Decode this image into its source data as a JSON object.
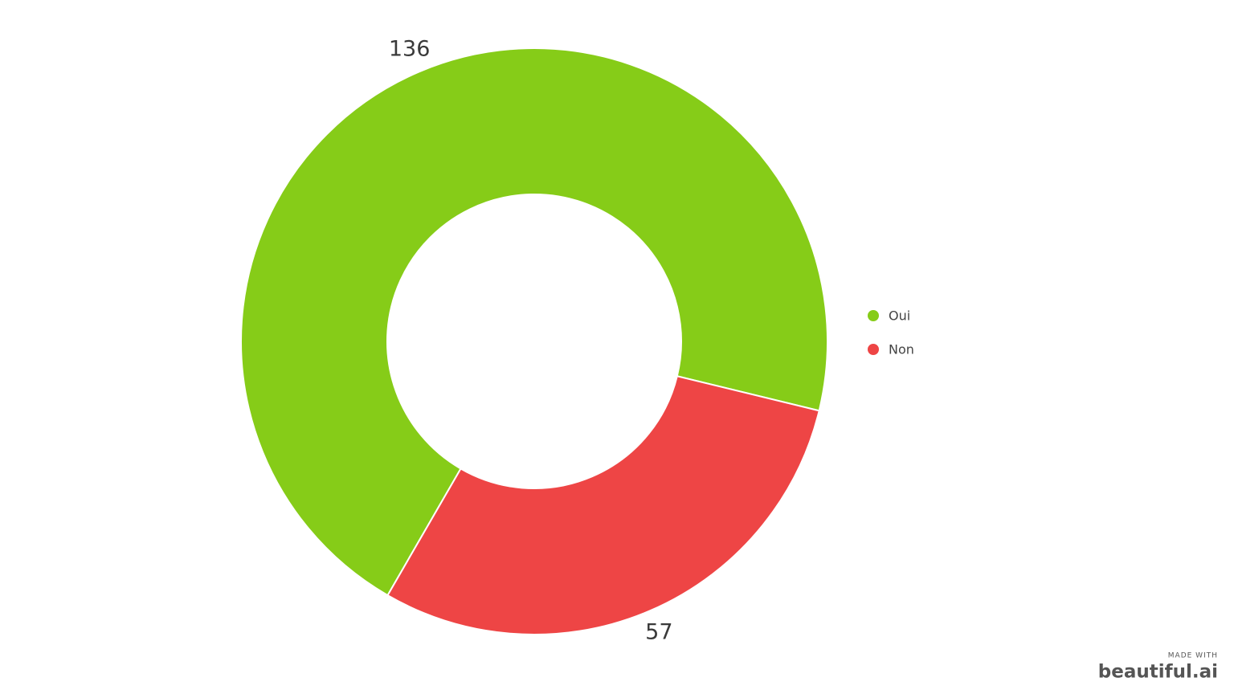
{
  "chart_data": {
    "type": "donut",
    "categories": [
      "Oui",
      "Non"
    ],
    "values": [
      136,
      57
    ],
    "colors": [
      "#86cc18",
      "#ee4545"
    ],
    "legend": "right"
  },
  "watermark": {
    "caption": "MADE WITH",
    "brand": "beautiful.ai"
  }
}
